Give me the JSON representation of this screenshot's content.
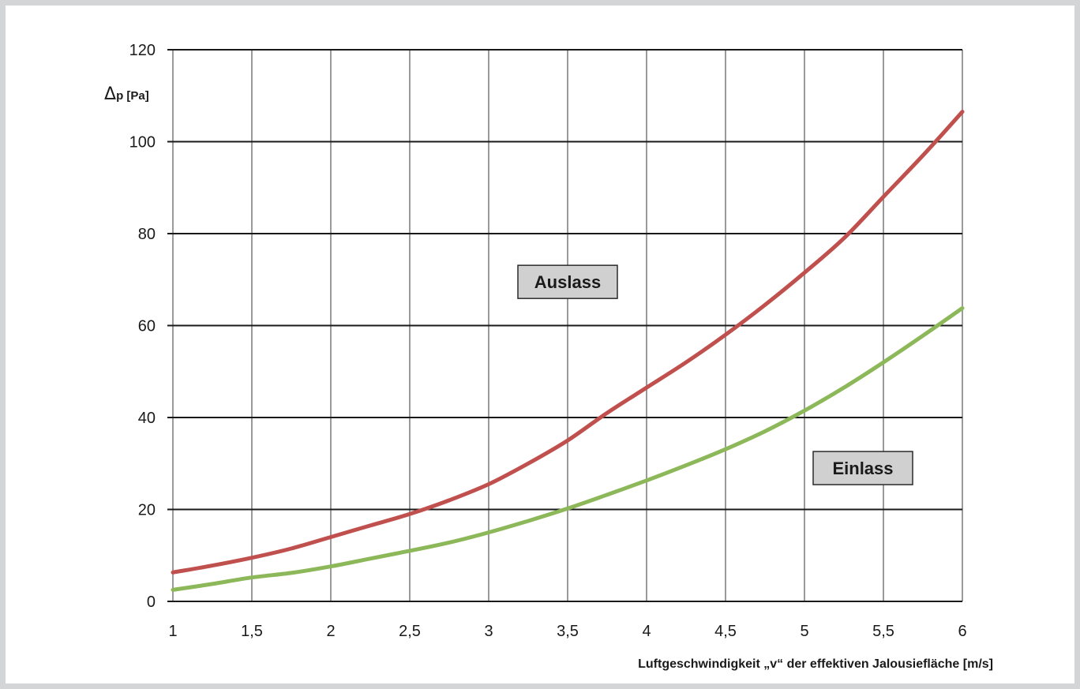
{
  "chart_data": {
    "type": "line",
    "xlabel": "Luftgeschwindigkeit „v“ der effektiven Jalousiefläche [m/s]",
    "ylabel": {
      "symbol": "Δ",
      "text": "p [Pa]"
    },
    "xlim": [
      1,
      6
    ],
    "ylim": [
      0,
      120
    ],
    "x_ticks": [
      1,
      1.5,
      2,
      2.5,
      3,
      3.5,
      4,
      4.5,
      5,
      5.5,
      6
    ],
    "x_tick_labels": [
      "1",
      "1,5",
      "2",
      "2,5",
      "3",
      "3,5",
      "4",
      "4,5",
      "5",
      "5,5",
      "6"
    ],
    "y_ticks": [
      0,
      20,
      40,
      60,
      80,
      100,
      120
    ],
    "y_tick_labels": [
      "0",
      "20",
      "40",
      "60",
      "80",
      "100",
      "120"
    ],
    "grid": true,
    "series": [
      {
        "name": "Auslass",
        "color": "#c0504d",
        "x": [
          1,
          1.25,
          1.5,
          1.75,
          2,
          2.25,
          2.5,
          2.75,
          3,
          3.25,
          3.5,
          3.75,
          4,
          4.25,
          4.5,
          4.75,
          5,
          5.25,
          5.5,
          5.75,
          6
        ],
        "y": [
          6.3,
          7.8,
          9.5,
          11.5,
          14,
          16.5,
          19,
          22,
          25.5,
          30,
          35,
          41,
          46.5,
          52,
          58,
          64.5,
          71.5,
          79,
          88,
          97,
          106.5
        ]
      },
      {
        "name": "Einlass",
        "color": "#8db85a",
        "x": [
          1,
          1.25,
          1.5,
          1.75,
          2,
          2.25,
          2.5,
          2.75,
          3,
          3.25,
          3.5,
          3.75,
          4,
          4.25,
          4.5,
          4.75,
          5,
          5.25,
          5.5,
          5.75,
          6
        ],
        "y": [
          2.5,
          3.8,
          5.2,
          6.2,
          7.6,
          9.3,
          11,
          12.8,
          15,
          17.5,
          20.2,
          23.2,
          26.3,
          29.6,
          33.1,
          37,
          41.5,
          46.5,
          52,
          57.8,
          63.8
        ]
      }
    ],
    "annotations": [
      {
        "text": "Auslass",
        "x": 3.5,
        "y": 69.5
      },
      {
        "text": "Einlass",
        "x": 5.37,
        "y": 29
      }
    ]
  }
}
